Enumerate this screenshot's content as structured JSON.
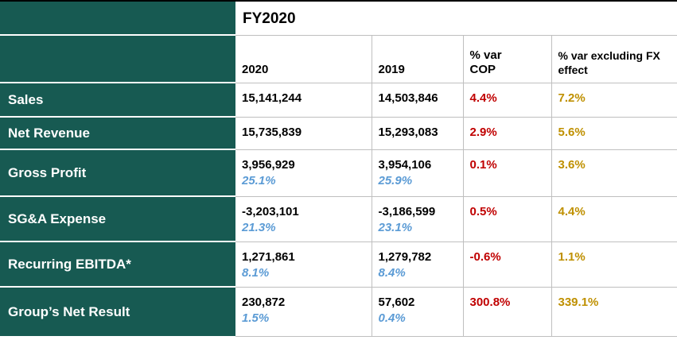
{
  "colors": {
    "teal": "#175A52",
    "negative_red": "#C00000",
    "gold": "#BF9000",
    "ratio_blue": "#5B9BD5",
    "grid_gray": "#BFBFBF"
  },
  "chart_data": {
    "type": "table",
    "title": "FY2020",
    "col_headers": {
      "year_current": "2020",
      "year_prior": "2019",
      "var_cop_line1": "% var",
      "var_cop_line2": "COP",
      "var_fx": "% var excluding FX effect"
    },
    "rows": [
      {
        "label": "Sales",
        "y2020": {
          "value": "15,141,244",
          "pct": ""
        },
        "y2019": {
          "value": "14,503,846",
          "pct": ""
        },
        "var_cop": "4.4%",
        "var_fx": "7.2%"
      },
      {
        "label": "Net Revenue",
        "y2020": {
          "value": "15,735,839",
          "pct": ""
        },
        "y2019": {
          "value": "15,293,083",
          "pct": ""
        },
        "var_cop": "2.9%",
        "var_fx": "5.6%"
      },
      {
        "label": "Gross Profit",
        "y2020": {
          "value": "3,956,929",
          "pct": "25.1%"
        },
        "y2019": {
          "value": "3,954,106",
          "pct": "25.9%"
        },
        "var_cop": "0.1%",
        "var_fx": "3.6%"
      },
      {
        "label": "SG&A Expense",
        "y2020": {
          "value": "-3,203,101",
          "pct": "21.3%"
        },
        "y2019": {
          "value": "-3,186,599",
          "pct": "23.1%"
        },
        "var_cop": "0.5%",
        "var_fx": "4.4%"
      },
      {
        "label": "Recurring EBITDA*",
        "y2020": {
          "value": "1,271,861",
          "pct": "8.1%"
        },
        "y2019": {
          "value": "1,279,782",
          "pct": "8.4%"
        },
        "var_cop": "-0.6%",
        "var_fx": "1.1%"
      },
      {
        "label": "Group’s Net Result",
        "y2020": {
          "value": "230,872",
          "pct": "1.5%"
        },
        "y2019": {
          "value": "57,602",
          "pct": "0.4%"
        },
        "var_cop": "300.8%",
        "var_fx": "339.1%"
      }
    ]
  }
}
